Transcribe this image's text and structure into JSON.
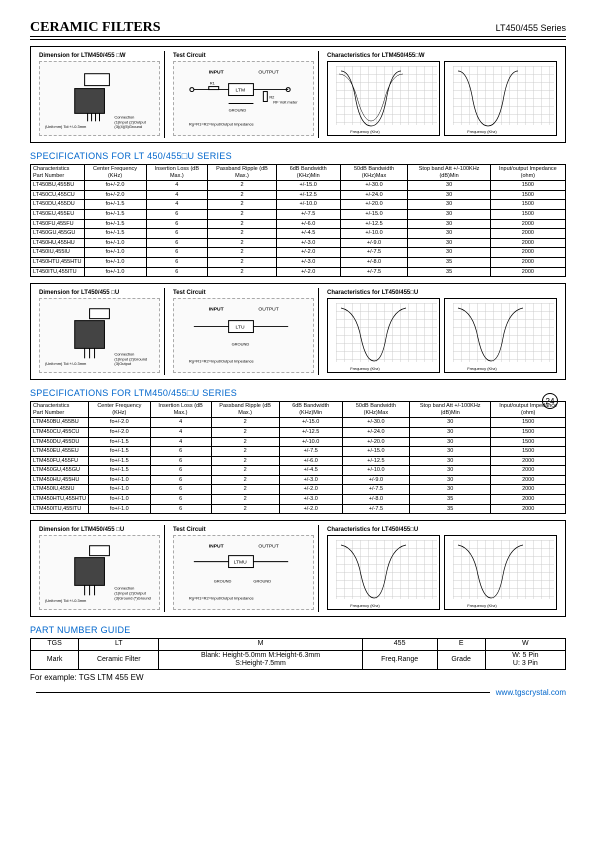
{
  "header": {
    "title": "CERAMIC FILTERS",
    "series": "LT450/455 Series"
  },
  "page_number": "24",
  "panels": {
    "set1": {
      "dim_title": "Dimension for LTM450/455 □W",
      "test_title": "Test Circuit",
      "char_title": "Characteristics for LTM450/455□W"
    },
    "set2": {
      "dim_title": "Dimension for LT450/455 □U",
      "test_title": "Test Circuit",
      "char_title": "Characteristics for LT450/455□U"
    },
    "set3": {
      "dim_title": "Dimension for LTM450/455 □U",
      "test_title": "Test Circuit",
      "char_title": "Characteristics for LT450/455□U"
    }
  },
  "spec_headers": {
    "diag": "Characteristics",
    "pn": "Part Number",
    "cf": "Center Frequency (KHz)",
    "il": "Insertion Loss (dB Max.)",
    "pr": "Passband Ripple (dB Max.)",
    "bw6": "6dB Bandwidth (KHz)Min",
    "bw50": "50dB Bandwidth (KHz)Max",
    "sb": "Stop band Att +/-100KHz (dB)Min",
    "io": "Input/output Impedance (ohm)"
  },
  "section1": {
    "title": "SPECIFICATIONS FOR LT 450/455□U SERIES"
  },
  "table1": [
    [
      "LT450BU,455BU",
      "fo+/-2.0",
      "4",
      "2",
      "+/-15.0",
      "+/-30.0",
      "30",
      "1500"
    ],
    [
      "LT450CU,455CU",
      "fo+/-2.0",
      "4",
      "2",
      "+/-12.5",
      "+/-24.0",
      "30",
      "1500"
    ],
    [
      "LT450DU,455DU",
      "fo+/-1.5",
      "4",
      "2",
      "+/-10.0",
      "+/-20.0",
      "30",
      "1500"
    ],
    [
      "LT450EU,455EU",
      "fo+/-1.5",
      "6",
      "2",
      "+/-7.5",
      "+/-15.0",
      "30",
      "1500"
    ],
    [
      "LT450FU,455FU",
      "fo+/-1.5",
      "6",
      "2",
      "+/-6.0",
      "+/-12.5",
      "30",
      "2000"
    ],
    [
      "LT450GU,455GU",
      "fo+/-1.5",
      "6",
      "2",
      "+/-4.5",
      "+/-10.0",
      "30",
      "2000"
    ],
    [
      "LT450HU,455HU",
      "fo+/-1.0",
      "6",
      "2",
      "+/-3.0",
      "+/-9.0",
      "30",
      "2000"
    ],
    [
      "LT450IU,455IU",
      "fo+/-1.0",
      "6",
      "2",
      "+/-2.0",
      "+/-7.5",
      "30",
      "2000"
    ],
    [
      "LT450HTU,455HTU",
      "fo+/-1.0",
      "6",
      "2",
      "+/-3.0",
      "+/-8.0",
      "35",
      "2000"
    ],
    [
      "LT450ITU,455ITU",
      "fo+/-1.0",
      "6",
      "2",
      "+/-2.0",
      "+/-7.5",
      "35",
      "2000"
    ]
  ],
  "section2": {
    "title": "SPECIFICATIONS FOR LTM450/455□U SERIES"
  },
  "table2": [
    [
      "LTM450BU,455BU",
      "fo+/-2.0",
      "4",
      "2",
      "+/-15.0",
      "+/-30.0",
      "30",
      "1500"
    ],
    [
      "LTM450CU,455CU",
      "fo+/-2.0",
      "4",
      "2",
      "+/-12.5",
      "+/-24.0",
      "30",
      "1500"
    ],
    [
      "LTM450DU,455DU",
      "fo+/-1.5",
      "4",
      "2",
      "+/-10.0",
      "+/-20.0",
      "30",
      "1500"
    ],
    [
      "LTM450EU,455EU",
      "fo+/-1.5",
      "6",
      "2",
      "+/-7.5",
      "+/-15.0",
      "30",
      "1500"
    ],
    [
      "LTM450FU,455FU",
      "fo+/-1.5",
      "6",
      "2",
      "+/-6.0",
      "+/-12.5",
      "30",
      "2000"
    ],
    [
      "LTM450GU,455GU",
      "fo+/-1.5",
      "6",
      "2",
      "+/-4.5",
      "+/-10.0",
      "30",
      "2000"
    ],
    [
      "LTM450HU,455HU",
      "fo+/-1.0",
      "6",
      "2",
      "+/-3.0",
      "+/-9.0",
      "30",
      "2000"
    ],
    [
      "LTM450IU,455IU",
      "fo+/-1.0",
      "6",
      "2",
      "+/-2.0",
      "+/-7.5",
      "30",
      "2000"
    ],
    [
      "LTM450HTU,455HTU",
      "fo+/-1.0",
      "6",
      "2",
      "+/-3.0",
      "+/-8.0",
      "35",
      "2000"
    ],
    [
      "LTM450ITU,455ITU",
      "fo+/-1.0",
      "6",
      "2",
      "+/-2.0",
      "+/-7.5",
      "35",
      "2000"
    ]
  ],
  "part_guide": {
    "title": "PART NUMBER GUIDE",
    "row1": [
      "TGS",
      "LT",
      "M",
      "455",
      "E",
      "W"
    ],
    "row2": [
      "Mark",
      "Ceramic Filter",
      "Blank: Height-5.0mm   M:Height-6.3mm\nS:Height-7.5mm",
      "Freq.Range",
      "Grade",
      "W: 5 Pin\nU: 3 Pin"
    ],
    "example": "For example: TGS LTM 455 EW"
  },
  "footer": {
    "url": "www.tgscrystal.com"
  },
  "diagram_labels": {
    "dim_note": "(Unit:mm)\nTolerance:+/-0.3mm",
    "conn": "Connection\n(1) Input\n(2) Output\n(3)(4)(5) Ground",
    "test_in": "INPUT",
    "test_out": "OUTPUT",
    "test_note": "Rg=R1=R2=Input/Output Impedance",
    "freq_axis": "Frequency (Khz)",
    "att_axis": "Attenuation (dB)"
  }
}
